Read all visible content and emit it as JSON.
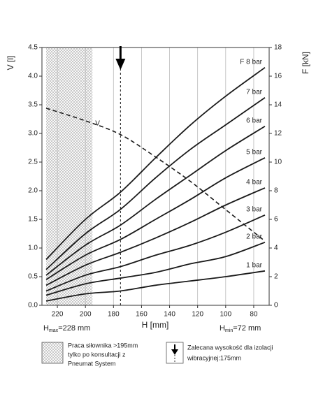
{
  "chart_data": {
    "type": "line",
    "x_label": "H [mm]",
    "y_label": "V [l]",
    "y2_label": "F [kN]",
    "x": [
      228,
      200,
      175,
      150,
      125,
      100,
      72
    ],
    "xlim": [
      231,
      69
    ],
    "xticks": [
      220,
      200,
      180,
      160,
      140,
      120,
      100,
      80
    ],
    "ylim": [
      0,
      4.5
    ],
    "yticks": [
      {
        "value": 0,
        "label": "0.0"
      },
      {
        "value": 0.5,
        "label": "0.5"
      },
      {
        "value": 1,
        "label": "1.0"
      },
      {
        "value": 1.5,
        "label": "1.5"
      },
      {
        "value": 2,
        "label": "2.0"
      },
      {
        "value": 2.5,
        "label": "2.5"
      },
      {
        "value": 3,
        "label": "3.0"
      },
      {
        "value": 3.5,
        "label": "3.5"
      },
      {
        "value": 4,
        "label": "4.0"
      },
      {
        "value": 4.5,
        "label": "4.5"
      }
    ],
    "y2lim": [
      0,
      18
    ],
    "y2ticks": [
      0,
      2,
      4,
      6,
      8,
      10,
      12,
      14,
      16,
      18
    ],
    "grid": true,
    "series": [
      {
        "name": "F 8 bar",
        "color": "#1a1a1a",
        "axis": "y2",
        "values": [
          3.2,
          6.0,
          7.9,
          10.3,
          12.6,
          14.6,
          16.6
        ]
      },
      {
        "name": "7 bar",
        "color": "#1a1a1a",
        "axis": "y2",
        "values": [
          2.5,
          5.0,
          6.7,
          8.9,
          10.9,
          12.6,
          14.5
        ]
      },
      {
        "name": "6 bar",
        "color": "#1a1a1a",
        "axis": "y2",
        "values": [
          2.1,
          4.2,
          5.6,
          7.4,
          9.1,
          10.8,
          12.5
        ]
      },
      {
        "name": "5 bar",
        "color": "#1a1a1a",
        "axis": "y2",
        "values": [
          1.8,
          3.5,
          4.6,
          6.0,
          7.4,
          8.9,
          10.3
        ]
      },
      {
        "name": "4 bar",
        "color": "#1a1a1a",
        "axis": "y2",
        "values": [
          1.4,
          2.8,
          3.7,
          4.7,
          5.8,
          7.0,
          8.2
        ]
      },
      {
        "name": "3 bar",
        "color": "#1a1a1a",
        "axis": "y2",
        "values": [
          1.0,
          2.1,
          2.7,
          3.5,
          4.2,
          5.1,
          6.3
        ]
      },
      {
        "name": "2 bar",
        "color": "#1a1a1a",
        "axis": "y2",
        "values": [
          0.7,
          1.5,
          1.9,
          2.3,
          2.9,
          3.4,
          4.4
        ]
      },
      {
        "name": "1 bar",
        "color": "#1a1a1a",
        "axis": "y2",
        "values": [
          0.3,
          0.8,
          1.0,
          1.4,
          1.7,
          2.0,
          2.4
        ]
      },
      {
        "name": "V",
        "color": "#1a1a1a",
        "axis": "y",
        "dashed": true,
        "values": [
          3.44,
          3.22,
          2.98,
          2.59,
          2.16,
          1.67,
          1.12
        ]
      }
    ],
    "hatch_range": [
      228,
      195
    ],
    "recommended_height": 175,
    "h_max": {
      "symbol": "H",
      "sub": "max",
      "text": "=228 mm"
    },
    "h_min": {
      "symbol": "H",
      "sub": "min",
      "text": "=72 mm"
    },
    "legend": {
      "hatch_text": [
        "Praca siłownika >195mm",
        "tylko po konsultacji z",
        "Pneumat System"
      ],
      "arrow_text": [
        "Zalecana wysokość dla izolacji",
        "wibracyjnej:175mm"
      ]
    }
  }
}
